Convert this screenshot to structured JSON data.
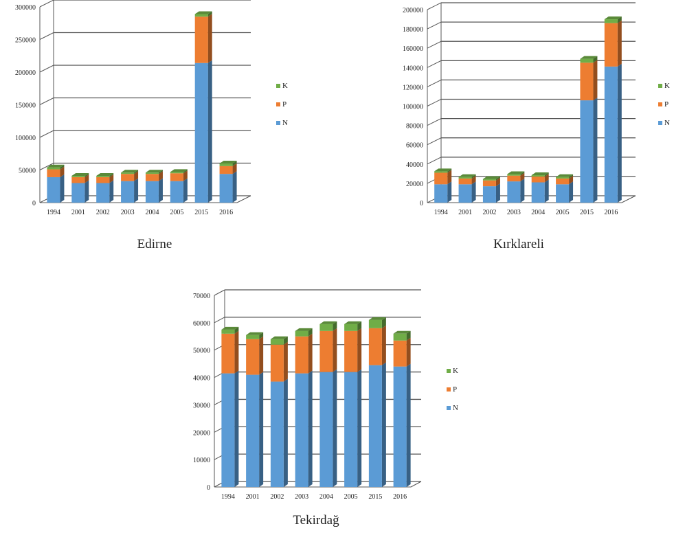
{
  "colors": {
    "N": "#5b9bd5",
    "P": "#ed7d31",
    "K": "#70ad47",
    "grid": "#555555"
  },
  "chart_data": [
    {
      "type": "bar",
      "stacked": true,
      "title": "Edirne",
      "categories": [
        "1994",
        "2001",
        "2002",
        "2003",
        "2004",
        "2005",
        "2015",
        "2016"
      ],
      "series": [
        {
          "name": "N",
          "values": [
            39000,
            30000,
            30000,
            33000,
            33000,
            33000,
            214000,
            44000
          ]
        },
        {
          "name": "P",
          "values": [
            12000,
            9000,
            9000,
            11000,
            11000,
            12000,
            71000,
            12000
          ]
        },
        {
          "name": "K",
          "values": [
            3000,
            2000,
            2000,
            2000,
            2000,
            2000,
            4000,
            4000
          ]
        }
      ],
      "ylim": [
        0,
        300000
      ],
      "yticks": [
        "0",
        "50000",
        "100000",
        "150000",
        "200000",
        "250000",
        "300000"
      ],
      "legend": [
        "K",
        "P",
        "N"
      ],
      "legend_position": "right"
    },
    {
      "type": "bar",
      "stacked": true,
      "title": "Kırklareli",
      "categories": [
        "1994",
        "2001",
        "2002",
        "2003",
        "2004",
        "2005",
        "2015",
        "2016"
      ],
      "series": [
        {
          "name": "N",
          "values": [
            19000,
            19000,
            17000,
            22000,
            21000,
            19000,
            106000,
            141000
          ]
        },
        {
          "name": "P",
          "values": [
            12000,
            6000,
            6000,
            6000,
            6000,
            6000,
            39000,
            45000
          ]
        },
        {
          "name": "K",
          "values": [
            1500,
            1500,
            1500,
            1500,
            1500,
            1500,
            4000,
            4000
          ]
        }
      ],
      "ylim": [
        0,
        200000
      ],
      "yticks": [
        "0",
        "20000",
        "40000",
        "60000",
        "80000",
        "100000",
        "120000",
        "140000",
        "160000",
        "180000",
        "200000"
      ],
      "legend": [
        "K",
        "P",
        "N"
      ],
      "legend_position": "right"
    },
    {
      "type": "bar",
      "stacked": true,
      "title": "Tekirdağ",
      "categories": [
        "1994",
        "2001",
        "2002",
        "2003",
        "2004",
        "2005",
        "2015",
        "2016"
      ],
      "series": [
        {
          "name": "N",
          "values": [
            41500,
            41000,
            38500,
            41500,
            42000,
            42000,
            44500,
            44000
          ]
        },
        {
          "name": "P",
          "values": [
            14500,
            13000,
            13500,
            13500,
            15000,
            15000,
            13500,
            9500
          ]
        },
        {
          "name": "K",
          "values": [
            1500,
            1500,
            2000,
            2000,
            2500,
            2500,
            3000,
            2500
          ]
        }
      ],
      "ylim": [
        0,
        70000
      ],
      "yticks": [
        "0",
        "10000",
        "20000",
        "30000",
        "40000",
        "50000",
        "60000",
        "70000"
      ],
      "legend": [
        "K",
        "P",
        "N"
      ],
      "legend_position": "right"
    }
  ]
}
